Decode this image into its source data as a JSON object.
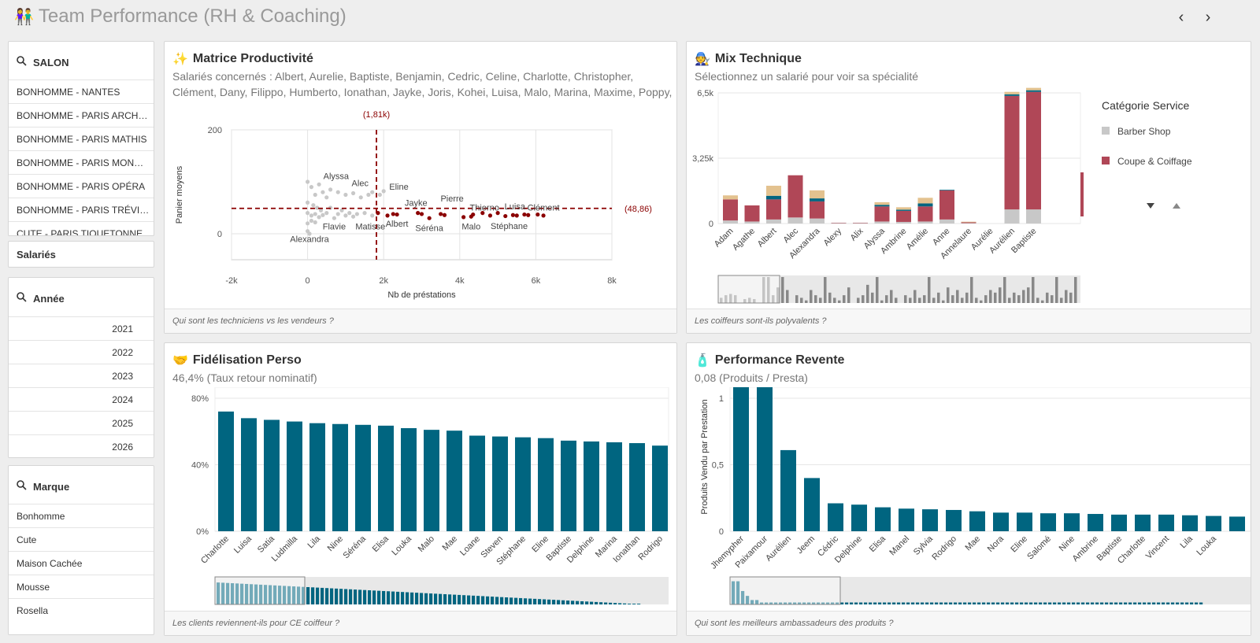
{
  "header": {
    "title": "Team Performance (RH & Coaching)",
    "title_icon": "people-icon",
    "prev_label": "‹",
    "next_label": "›"
  },
  "filters": {
    "salon": {
      "title": "SALON",
      "items": [
        "BONHOMME - NANTES",
        "BONHOMME - PARIS ARCH…",
        "BONHOMME - PARIS MATHIS",
        "BONHOMME - PARIS MON…",
        "BONHOMME - PARIS OPÉRA",
        "BONHOMME - PARIS TRÉVI…",
        "CUTE - PARIS TIQUETONNE"
      ]
    },
    "salaries": {
      "title": "Salariés"
    },
    "annee": {
      "title": "Année",
      "items": [
        "2021",
        "2022",
        "2023",
        "2024",
        "2025",
        "2026"
      ]
    },
    "marque": {
      "title": "Marque",
      "items": [
        "Bonhomme",
        "Cute",
        "Maison Cachée",
        "Mousse",
        "Rosella"
      ]
    }
  },
  "colors": {
    "teal": "#006580",
    "crimson": "#b04757",
    "sand": "#e3c28f",
    "darkred": "#8b0000",
    "grey": "#c8c8c8"
  },
  "panels": {
    "matrice": {
      "title": "Matrice Productivité",
      "sub1": "Salariés concernés : Albert, Aurelie, Baptiste, Benjamin, Cedric, Celine, Charlotte, Christopher,",
      "sub2": "Clément, Dany, Filippo, Humberto, Ionathan, Jayke, Joris, Kohei, Luisa, Malo, Marina, Maxime, Poppy,",
      "footer": "Qui sont les techniciens vs les vendeurs ?"
    },
    "mix": {
      "title": "Mix Technique",
      "subtitle": "Sélectionnez un salarié pour voir sa spécialité",
      "footer": "Les coiffeurs sont-ils polyvalents ?"
    },
    "fidelisation": {
      "title": "Fidélisation Perso",
      "subtitle": "46,4% (Taux retour nominatif)",
      "footer": "Les clients reviennent-ils pour CE coiffeur ?"
    },
    "revente": {
      "title": "Performance Revente",
      "subtitle": "0,08 (Produits / Presta)",
      "footer": "Qui sont les meilleurs ambassadeurs des produits ?"
    }
  },
  "chart_data": [
    {
      "type": "scatter",
      "xlabel": "Nb de préstations",
      "ylabel": "Panier moyens",
      "xlim": [
        -2000,
        8000
      ],
      "ylim": [
        -50,
        200
      ],
      "x_ticks": [
        "-2k",
        "0",
        "2k",
        "4k",
        "6k",
        "8k"
      ],
      "y_ticks": [
        "200",
        "0"
      ],
      "ref_x_label": "(1,81k)",
      "ref_y_label": "(48,86)",
      "ref_x": 1810,
      "ref_y": 48.86,
      "labels": [
        {
          "name": "Alyssa",
          "x": 750,
          "y": 105
        },
        {
          "name": "Alec",
          "x": 1380,
          "y": 92
        },
        {
          "name": "Eline",
          "x": 2400,
          "y": 85
        },
        {
          "name": "Pierre",
          "x": 3800,
          "y": 62
        },
        {
          "name": "Jayke",
          "x": 2850,
          "y": 54
        },
        {
          "name": "Thierno",
          "x": 4650,
          "y": 45
        },
        {
          "name": "Luisa",
          "x": 5450,
          "y": 47
        },
        {
          "name": "Clément",
          "x": 6200,
          "y": 45
        },
        {
          "name": "Flavie",
          "x": 700,
          "y": 8
        },
        {
          "name": "Matisse",
          "x": 1650,
          "y": 8
        },
        {
          "name": "Albert",
          "x": 2350,
          "y": 14
        },
        {
          "name": "Séréna",
          "x": 3200,
          "y": 5
        },
        {
          "name": "Malo",
          "x": 4300,
          "y": 8
        },
        {
          "name": "Stéphane",
          "x": 5300,
          "y": 9
        },
        {
          "name": "Alexandra",
          "x": 50,
          "y": -16
        }
      ],
      "points_low": [
        [
          0,
          100
        ],
        [
          100,
          90
        ],
        [
          300,
          95
        ],
        [
          200,
          75
        ],
        [
          400,
          80
        ],
        [
          500,
          70
        ],
        [
          0,
          60
        ],
        [
          150,
          55
        ],
        [
          250,
          50
        ],
        [
          350,
          45
        ],
        [
          0,
          40
        ],
        [
          100,
          35
        ],
        [
          200,
          38
        ],
        [
          300,
          32
        ],
        [
          400,
          36
        ],
        [
          0,
          20
        ],
        [
          100,
          25
        ],
        [
          200,
          22
        ],
        [
          0,
          5
        ],
        [
          50,
          0
        ],
        [
          600,
          85
        ],
        [
          800,
          80
        ],
        [
          1000,
          75
        ],
        [
          1200,
          78
        ],
        [
          1400,
          70
        ],
        [
          1600,
          75
        ],
        [
          1700,
          80
        ],
        [
          900,
          45
        ],
        [
          1100,
          40
        ],
        [
          1300,
          38
        ],
        [
          1500,
          40
        ],
        [
          1700,
          35
        ],
        [
          700,
          30
        ],
        [
          500,
          40
        ],
        [
          1900,
          75
        ],
        [
          2000,
          82
        ],
        [
          1000,
          35
        ],
        [
          1200,
          33
        ],
        [
          600,
          50
        ],
        [
          800,
          38
        ]
      ],
      "points_high": [
        [
          1850,
          40
        ],
        [
          2100,
          35
        ],
        [
          2250,
          38
        ],
        [
          2350,
          37
        ],
        [
          2900,
          40
        ],
        [
          3000,
          38
        ],
        [
          3200,
          30
        ],
        [
          3500,
          38
        ],
        [
          3600,
          36
        ],
        [
          4100,
          32
        ],
        [
          4350,
          37
        ],
        [
          4600,
          40
        ],
        [
          4800,
          35
        ],
        [
          5000,
          40
        ],
        [
          5200,
          34
        ],
        [
          5400,
          36
        ],
        [
          5500,
          35
        ],
        [
          5700,
          37
        ],
        [
          5800,
          36
        ],
        [
          6050,
          37
        ],
        [
          6200,
          35
        ],
        [
          4300,
          33
        ]
      ]
    },
    {
      "type": "bar",
      "legend_title": "Catégorie Service",
      "legend": [
        "Barber Shop",
        "Coupe & Coiffage"
      ],
      "y_ticks": [
        "6,5k",
        "3,25k",
        "0"
      ],
      "ylim": [
        0,
        6500
      ],
      "categories": [
        "Adam",
        "Agathe",
        "Albert",
        "Alec",
        "Alexandra",
        "Alexy",
        "Alix",
        "Alyssa",
        "Ambrine",
        "Amélie",
        "Anne",
        "Annelaure",
        "Aurélie",
        "Aurélien",
        "Baptiste"
      ],
      "series": [
        {
          "name": "Barber Shop",
          "values": [
            150,
            100,
            200,
            300,
            250,
            20,
            20,
            100,
            80,
            100,
            200,
            20,
            0,
            700,
            700
          ]
        },
        {
          "name": "Coupe & Coiffage",
          "values": [
            1050,
            800,
            1000,
            2100,
            850,
            20,
            20,
            750,
            550,
            750,
            1450,
            40,
            0,
            5650,
            5850
          ]
        },
        {
          "name": "",
          "values": [
            0,
            0,
            180,
            0,
            150,
            0,
            0,
            80,
            60,
            150,
            30,
            0,
            0,
            80,
            80
          ]
        },
        {
          "name": "",
          "values": [
            200,
            0,
            500,
            0,
            400,
            0,
            0,
            130,
            120,
            280,
            0,
            30,
            0,
            120,
            120
          ]
        }
      ]
    },
    {
      "type": "bar",
      "y_ticks": [
        "80%",
        "40%",
        "0%"
      ],
      "ylim": [
        0,
        80
      ],
      "categories": [
        "Charlotte",
        "Luisa",
        "Satia",
        "Ludmilla",
        "Lila",
        "Nine",
        "Séréna",
        "Elisa",
        "Louka",
        "Malo",
        "Mae",
        "Loane",
        "Steven",
        "Stéphane",
        "Eline",
        "Baptiste",
        "Delphine",
        "Marina",
        "Ionathan",
        "Rodrigo"
      ],
      "values": [
        72,
        68,
        67,
        66,
        65,
        64.5,
        64,
        63.5,
        62,
        61,
        60.5,
        57.5,
        57,
        56.5,
        56,
        54.5,
        54,
        53.5,
        53,
        51.5
      ]
    },
    {
      "type": "bar",
      "ylabel": "Produits Vendu par Prestation",
      "y_ticks": [
        "1",
        "0,5",
        "0"
      ],
      "ylim": [
        0,
        1
      ],
      "categories": [
        "Jhemypher",
        "Paixamour",
        "Aurélien",
        "Jeem",
        "Cédric",
        "Delphine",
        "Elisa",
        "Manel",
        "Sylvia",
        "Rodrigo",
        "Mae",
        "Nora",
        "Eline",
        "Salomé",
        "Nine",
        "Ambrine",
        "Baptiste",
        "Charlotte",
        "Vincent",
        "Lila",
        "Louka",
        ""
      ],
      "values": [
        1.05,
        1.05,
        0.61,
        0.4,
        0.21,
        0.2,
        0.18,
        0.17,
        0.165,
        0.16,
        0.15,
        0.14,
        0.14,
        0.135,
        0.135,
        0.13,
        0.125,
        0.125,
        0.125,
        0.12,
        0.115,
        0.11
      ]
    }
  ]
}
